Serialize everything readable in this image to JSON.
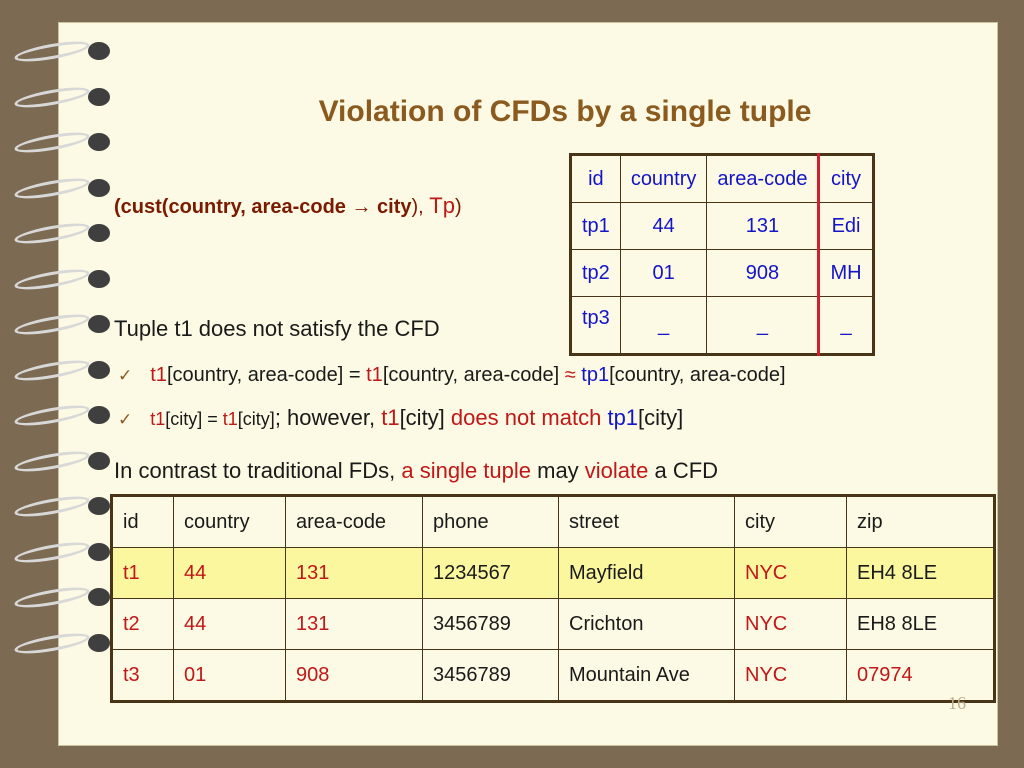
{
  "slide": {
    "title": "Violation of CFDs by a single tuple",
    "page_number": "16"
  },
  "cfd": {
    "prefix": "(cust(country, area-code ",
    "arrow": "→",
    "city": " city",
    "close": "), ",
    "tp": "Tp",
    "end": ")"
  },
  "pattern_table": {
    "header": [
      "id",
      "country",
      "area-code",
      "city"
    ],
    "rows": [
      [
        "tp1",
        "44",
        "131",
        "Edi"
      ],
      [
        "tp2",
        "01",
        "908",
        "MH"
      ],
      [
        "tp3",
        "_",
        "_",
        "_"
      ]
    ]
  },
  "text": {
    "line1": "Tuple t1 does not satisfy the CFD",
    "b1_t1a": "t1",
    "b1_a": "[country, area-code] = ",
    "b1_t1b": "t1",
    "b1_b": "[country, area-code] ",
    "b1_approx": "≈",
    "b1_tp1": " tp1",
    "b1_c": "[country, area-code]",
    "b2_t1a": "t1",
    "b2_a": "[city] = ",
    "b2_t1b": "t1",
    "b2_b": "[city]",
    "b2_c": "; however, ",
    "b2_t1c": "t1",
    "b2_d": "[city] ",
    "b2_nomatch": "does not match",
    "b2_tp1": " tp1",
    "b2_e": "[city]",
    "line2_a": "In contrast to traditional FDs, ",
    "line2_b": "a single tuple",
    "line2_c": " may ",
    "line2_d": "violate",
    "line2_e": " a CFD"
  },
  "data_table": {
    "header": [
      "id",
      "country",
      "area-code",
      "phone",
      "street",
      "city",
      "zip"
    ],
    "rows": [
      [
        "t1",
        "44",
        "131",
        "1234567",
        "Mayfield",
        "NYC",
        "EH4 8LE"
      ],
      [
        "t2",
        "44",
        "131",
        "3456789",
        "Crichton",
        "NYC",
        "EH8 8LE"
      ],
      [
        "t3",
        "01",
        "908",
        "3456789",
        "Mountain Ave",
        "NYC",
        "07974"
      ]
    ]
  }
}
